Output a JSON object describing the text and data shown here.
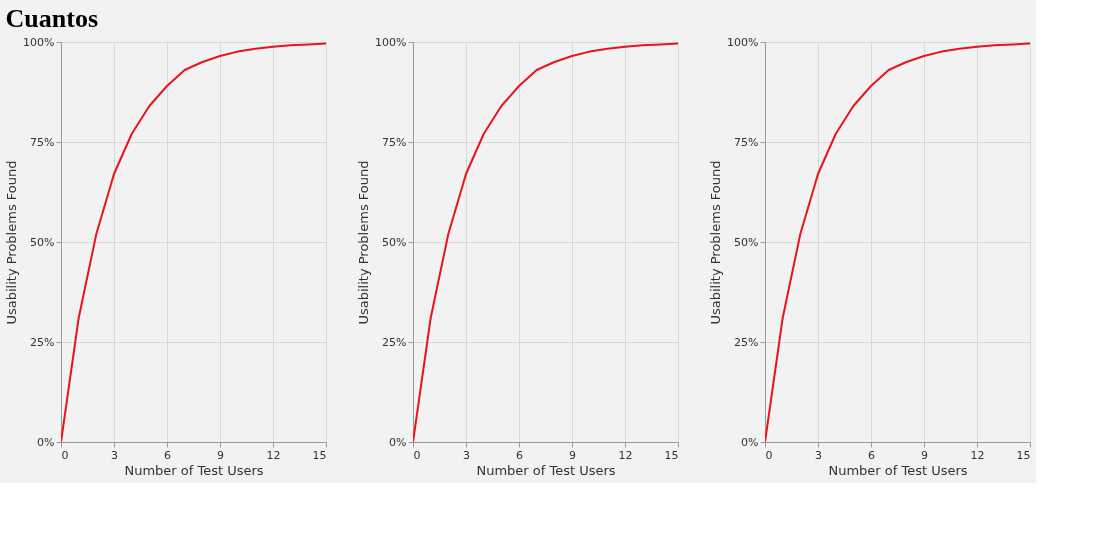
{
  "chart_data": [
    {
      "type": "line",
      "title": "Cuantos",
      "xlabel": "Number of Test Users",
      "ylabel": "Usability Problems Found",
      "x": [
        0,
        1,
        2,
        3,
        4,
        5,
        6,
        7,
        8,
        9,
        10,
        11,
        12,
        13,
        14,
        15
      ],
      "series": [
        {
          "color": "#e8141b",
          "values": [
            0,
            31,
            52,
            67,
            77,
            84,
            89,
            93,
            95,
            96.5,
            97.6,
            98.3,
            98.8,
            99.2,
            99.4,
            99.6
          ]
        }
      ],
      "xlim": [
        0,
        15
      ],
      "xticks": [
        0,
        3,
        6,
        9,
        12,
        15
      ],
      "ylim": [
        0,
        100
      ],
      "yticks": [
        {
          "value": 0,
          "label": "0%"
        },
        {
          "value": 25,
          "label": "25%"
        },
        {
          "value": 50,
          "label": "50%"
        },
        {
          "value": 75,
          "label": "75%"
        },
        {
          "value": 100,
          "label": "100%"
        }
      ],
      "grid": true,
      "line_style": "solid",
      "marker": "none"
    },
    {
      "type": "line",
      "xlabel": "Number of Test Users",
      "ylabel": "Usability Problems Found",
      "x": [
        0,
        1,
        2,
        3,
        4,
        5,
        6,
        7,
        8,
        9,
        10,
        11,
        12,
        13,
        14,
        15
      ],
      "series": [
        {
          "color": "#e8141b",
          "values": [
            0,
            31,
            52,
            67,
            77,
            84,
            89,
            93,
            95,
            96.5,
            97.6,
            98.3,
            98.8,
            99.2,
            99.4,
            99.6
          ]
        }
      ],
      "xlim": [
        0,
        15
      ],
      "xticks": [
        0,
        3,
        6,
        9,
        12,
        15
      ],
      "ylim": [
        0,
        100
      ],
      "yticks": [
        {
          "value": 0,
          "label": "0%"
        },
        {
          "value": 25,
          "label": "25%"
        },
        {
          "value": 50,
          "label": "50%"
        },
        {
          "value": 75,
          "label": "75%"
        },
        {
          "value": 100,
          "label": "100%"
        }
      ],
      "grid": true,
      "line_style": "solid",
      "marker": "none"
    },
    {
      "type": "line",
      "xlabel": "Number of Test Users",
      "ylabel": "Usability Problems Found",
      "x": [
        0,
        1,
        2,
        3,
        4,
        5,
        6,
        7,
        8,
        9,
        10,
        11,
        12,
        13,
        14,
        15
      ],
      "series": [
        {
          "color": "#e8141b",
          "values": [
            0,
            31,
            52,
            67,
            77,
            84,
            89,
            93,
            95,
            96.5,
            97.6,
            98.3,
            98.8,
            99.2,
            99.4,
            99.6
          ]
        }
      ],
      "xlim": [
        0,
        15
      ],
      "xticks": [
        0,
        3,
        6,
        9,
        12,
        15
      ],
      "ylim": [
        0,
        100
      ],
      "yticks": [
        {
          "value": 0,
          "label": "0%"
        },
        {
          "value": 25,
          "label": "25%"
        },
        {
          "value": 50,
          "label": "50%"
        },
        {
          "value": 75,
          "label": "75%"
        },
        {
          "value": 100,
          "label": "100%"
        }
      ],
      "grid": true,
      "line_style": "solid",
      "marker": "none"
    }
  ]
}
